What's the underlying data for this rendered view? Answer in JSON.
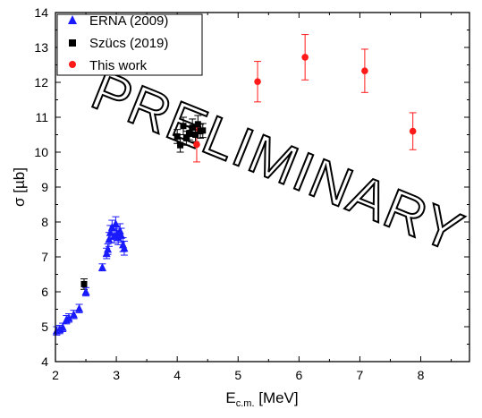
{
  "chart_data": {
    "type": "scatter",
    "xlabel": {
      "main": "E",
      "sub": "c.m.",
      "unit": " [MeV]"
    },
    "ylabel": "σ [µb]",
    "xlim": [
      2,
      8.8
    ],
    "ylim": [
      4,
      14
    ],
    "x_ticks": [
      2,
      3,
      4,
      5,
      6,
      7,
      8
    ],
    "y_ticks": [
      4,
      5,
      6,
      7,
      8,
      9,
      10,
      11,
      12,
      13,
      14
    ],
    "legend_position": "top-left",
    "watermark": "PRELIMINARY",
    "series": [
      {
        "name": "ERNA (2009)",
        "marker": "triangle",
        "color": "#1a1aff",
        "points": [
          {
            "x": 2.02,
            "y": 4.88,
            "err": 0.12
          },
          {
            "x": 2.07,
            "y": 4.92,
            "err": 0.12
          },
          {
            "x": 2.12,
            "y": 4.98,
            "err": 0.12
          },
          {
            "x": 2.18,
            "y": 5.2,
            "err": 0.12
          },
          {
            "x": 2.22,
            "y": 5.25,
            "err": 0.12
          },
          {
            "x": 2.3,
            "y": 5.35,
            "err": 0.12
          },
          {
            "x": 2.39,
            "y": 5.52,
            "err": 0.12
          },
          {
            "x": 2.5,
            "y": 6.0,
            "err": 0.12
          },
          {
            "x": 2.77,
            "y": 6.7,
            "err": 0.1
          },
          {
            "x": 2.84,
            "y": 7.1,
            "err": 0.15
          },
          {
            "x": 2.86,
            "y": 7.22,
            "err": 0.15
          },
          {
            "x": 2.88,
            "y": 7.5,
            "err": 0.2
          },
          {
            "x": 2.9,
            "y": 7.7,
            "err": 0.2
          },
          {
            "x": 2.93,
            "y": 7.85,
            "err": 0.2
          },
          {
            "x": 2.96,
            "y": 7.6,
            "err": 0.2
          },
          {
            "x": 2.99,
            "y": 7.95,
            "err": 0.2
          },
          {
            "x": 3.01,
            "y": 7.68,
            "err": 0.2
          },
          {
            "x": 3.03,
            "y": 7.55,
            "err": 0.2
          },
          {
            "x": 3.06,
            "y": 7.75,
            "err": 0.2
          },
          {
            "x": 3.08,
            "y": 7.62,
            "err": 0.2
          },
          {
            "x": 3.11,
            "y": 7.35,
            "err": 0.2
          },
          {
            "x": 3.13,
            "y": 7.25,
            "err": 0.2
          }
        ]
      },
      {
        "name": "Szücs (2019)",
        "marker": "square",
        "color": "#000000",
        "points": [
          {
            "x": 2.47,
            "y": 6.22,
            "err": 0.15
          },
          {
            "x": 4.0,
            "y": 10.45,
            "err": 0.2
          },
          {
            "x": 4.05,
            "y": 10.2,
            "err": 0.2
          },
          {
            "x": 4.1,
            "y": 10.75,
            "err": 0.25
          },
          {
            "x": 4.15,
            "y": 10.4,
            "err": 0.2
          },
          {
            "x": 4.2,
            "y": 10.55,
            "err": 0.2
          },
          {
            "x": 4.25,
            "y": 10.7,
            "err": 0.25
          },
          {
            "x": 4.3,
            "y": 10.5,
            "err": 0.2
          },
          {
            "x": 4.34,
            "y": 10.8,
            "err": 0.25
          },
          {
            "x": 4.38,
            "y": 10.6,
            "err": 0.2
          },
          {
            "x": 4.42,
            "y": 10.62,
            "err": 0.2
          }
        ]
      },
      {
        "name": "This work",
        "marker": "circle",
        "color": "#ff1a1a",
        "points": [
          {
            "x": 4.32,
            "y": 10.22,
            "err": 0.5
          },
          {
            "x": 5.32,
            "y": 12.02,
            "err": 0.58
          },
          {
            "x": 6.1,
            "y": 12.72,
            "err": 0.65
          },
          {
            "x": 7.08,
            "y": 12.33,
            "err": 0.62
          },
          {
            "x": 7.87,
            "y": 10.6,
            "err": 0.53
          }
        ]
      }
    ]
  }
}
